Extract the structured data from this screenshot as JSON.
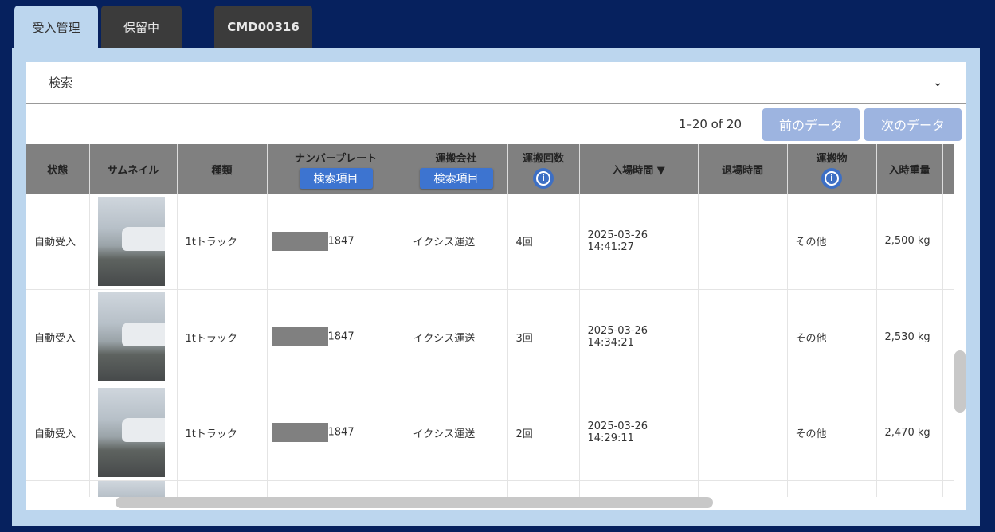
{
  "tabs": [
    {
      "label": "受入管理"
    },
    {
      "label": "保留中"
    },
    {
      "label": "CMD00316"
    }
  ],
  "search": {
    "label": "検索",
    "chevron": "chevron-down-icon"
  },
  "pager": {
    "count": "1–20 of 20",
    "prev": "前のデータ",
    "next": "次のデータ"
  },
  "columns": {
    "status": "状態",
    "thumb": "サムネイル",
    "kind": "種類",
    "plate": "ナンバープレート",
    "company": "運搬会社",
    "trips": "運搬回数",
    "entry": "入場時間 ▼",
    "exit": "退場時間",
    "cargo": "運搬物",
    "weight": "入時重量",
    "filter_label": "検索項目"
  },
  "rows": [
    {
      "status": "自動受入",
      "kind": "1tトラック",
      "plate": "1847",
      "company": "イクシス運送",
      "trips": "4回",
      "entry": "2025-03-26 14:41:27",
      "exit": "",
      "cargo": "その他",
      "weight": "2,500 kg"
    },
    {
      "status": "自動受入",
      "kind": "1tトラック",
      "plate": "1847",
      "company": "イクシス運送",
      "trips": "3回",
      "entry": "2025-03-26 14:34:21",
      "exit": "",
      "cargo": "その他",
      "weight": "2,530 kg"
    },
    {
      "status": "自動受入",
      "kind": "1tトラック",
      "plate": "1847",
      "company": "イクシス運送",
      "trips": "2回",
      "entry": "2025-03-26 14:29:11",
      "exit": "",
      "cargo": "その他",
      "weight": "2,470 kg"
    }
  ]
}
